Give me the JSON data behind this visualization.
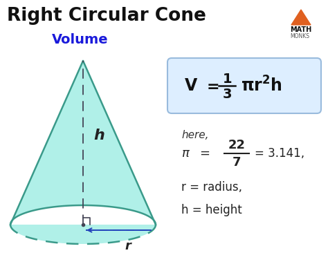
{
  "title": "Right Circular Cone",
  "subtitle": "Volume",
  "subtitle_color": "#1a1adb",
  "bg_color": "#ffffff",
  "cone_fill": "#b0f0e8",
  "cone_edge": "#3a9a8a",
  "cone_edge_width": 1.8,
  "dashed_v_color": "#444455",
  "dashed_r_color": "#2244bb",
  "formula_box_color": "#ddeeff",
  "formula_box_edge": "#99bbdd",
  "logo_triangle_color": "#e06020",
  "h_label": "h",
  "r_label": "r",
  "here_text": "here,",
  "r_line": "r = radius,",
  "h_line": "h = height"
}
